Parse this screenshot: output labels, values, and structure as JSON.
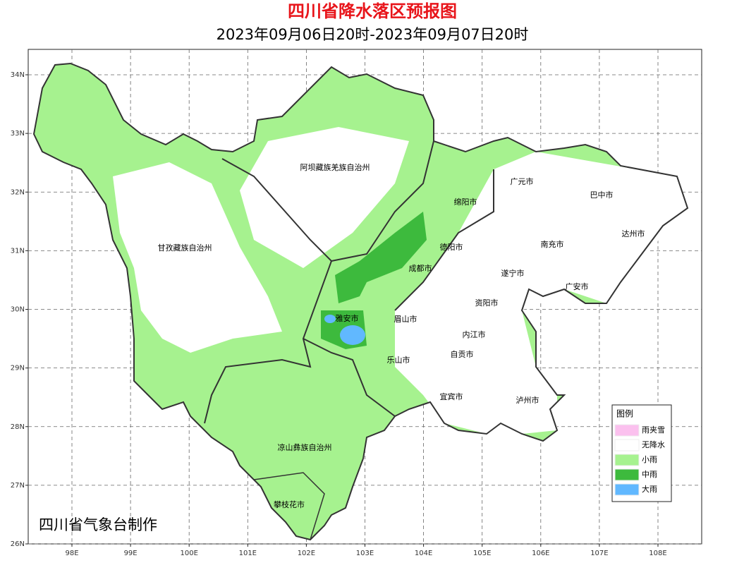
{
  "header": {
    "title": "四川省降水落区预报图",
    "subtitle": "2023年09月06日20时-2023年09月07日20时"
  },
  "map": {
    "lon_ticks": [
      {
        "value": 98,
        "label": "98E"
      },
      {
        "value": 99,
        "label": "99E"
      },
      {
        "value": 100,
        "label": "100E"
      },
      {
        "value": 101,
        "label": "101E"
      },
      {
        "value": 102,
        "label": "102E"
      },
      {
        "value": 103,
        "label": "103E"
      },
      {
        "value": 104,
        "label": "104E"
      },
      {
        "value": 105,
        "label": "105E"
      },
      {
        "value": 106,
        "label": "106E"
      },
      {
        "value": 107,
        "label": "107E"
      },
      {
        "value": 108,
        "label": "108E"
      }
    ],
    "lat_ticks": [
      {
        "value": 26,
        "label": "26N"
      },
      {
        "value": 27,
        "label": "27N"
      },
      {
        "value": 28,
        "label": "28N"
      },
      {
        "value": 29,
        "label": "29N"
      },
      {
        "value": 30,
        "label": "30N"
      },
      {
        "value": 31,
        "label": "31N"
      },
      {
        "value": 32,
        "label": "32N"
      },
      {
        "value": 33,
        "label": "33N"
      },
      {
        "value": 34,
        "label": "34N"
      }
    ],
    "places": [
      "阿坝藏族羌族自治州",
      "甘孜藏族自治州",
      "广元市",
      "巴中市",
      "绵阳市",
      "达州市",
      "德阳市",
      "南充市",
      "成都市",
      "遂宁市",
      "广安市",
      "资阳市",
      "雅安市",
      "眉山市",
      "内江市",
      "自贡市",
      "乐山市",
      "宜宾市",
      "泸州市",
      "凉山彝族自治州",
      "攀枝花市"
    ]
  },
  "legend": {
    "title": "图例",
    "items": [
      {
        "label": "雨夹雪",
        "color": "#fbc0ee"
      },
      {
        "label": "无降水",
        "color": "#ffffff"
      },
      {
        "label": "小雨",
        "color": "#a6f28f"
      },
      {
        "label": "中雨",
        "color": "#3dba3d"
      },
      {
        "label": "大雨",
        "color": "#61b8ff"
      }
    ]
  },
  "credit": "四川省气象台制作"
}
